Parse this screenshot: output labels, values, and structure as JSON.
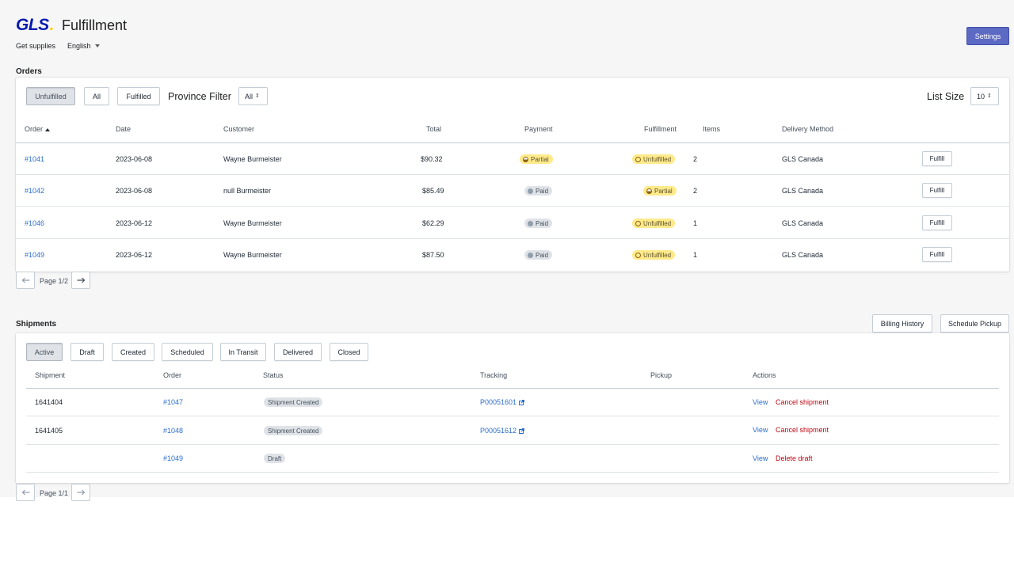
{
  "header": {
    "logo_text": "GLS",
    "logo_dot": ".",
    "title": "Fulfillment",
    "get_supplies": "Get supplies",
    "language": "English",
    "settings": "Settings"
  },
  "colors": {
    "primary": "#5c6ac4",
    "link": "#2c6ecb",
    "danger": "#bf0711",
    "brand_blue": "#061ab1",
    "brand_yellow": "#ffd100",
    "attention_badge": "#ffea8a",
    "neutral_badge": "#dfe3e8"
  },
  "orders": {
    "title": "Orders",
    "filters": [
      "Unfulfilled",
      "All",
      "Fulfilled"
    ],
    "active_filter": "Unfulfilled",
    "province_label": "Province Filter",
    "province_value": "All",
    "list_size_label": "List Size",
    "list_size_value": "10",
    "columns": [
      "Order",
      "Date",
      "Customer",
      "Total",
      "Payment",
      "Fulfillment",
      "Items",
      "Delivery Method"
    ],
    "sort_column": "Order",
    "rows": [
      {
        "order": "#1041",
        "date": "2023-06-08",
        "customer": "Wayne Burmeister",
        "total": "$90.32",
        "payment": "Partial",
        "fulfillment": "Unfulfilled",
        "items": "2",
        "delivery": "GLS Canada",
        "action": "Fulfill"
      },
      {
        "order": "#1042",
        "date": "2023-06-08",
        "customer": "null Burmeister",
        "total": "$85.49",
        "payment": "Paid",
        "fulfillment": "Partial",
        "items": "2",
        "delivery": "GLS Canada",
        "action": "Fulfill"
      },
      {
        "order": "#1046",
        "date": "2023-06-12",
        "customer": "Wayne Burmeister",
        "total": "$62.29",
        "payment": "Paid",
        "fulfillment": "Unfulfilled",
        "items": "1",
        "delivery": "GLS Canada",
        "action": "Fulfill"
      },
      {
        "order": "#1049",
        "date": "2023-06-12",
        "customer": "Wayne Burmeister",
        "total": "$87.50",
        "payment": "Paid",
        "fulfillment": "Unfulfilled",
        "items": "1",
        "delivery": "GLS Canada",
        "action": "Fulfill"
      }
    ],
    "page_text": "Page 1/2"
  },
  "shipments": {
    "title": "Shipments",
    "billing_history": "Billing History",
    "schedule_pickup": "Schedule Pickup",
    "filters": [
      "Active",
      "Draft",
      "Created",
      "Scheduled",
      "In Transit",
      "Delivered",
      "Closed"
    ],
    "active_filter": "Active",
    "columns": [
      "Shipment",
      "Order",
      "Status",
      "Tracking",
      "Pickup",
      "Actions"
    ],
    "rows": [
      {
        "shipment": "1641404",
        "order": "#1047",
        "status": "Shipment Created",
        "tracking": "P00051601",
        "pickup": "",
        "view": "View",
        "action": "Cancel shipment"
      },
      {
        "shipment": "1641405",
        "order": "#1048",
        "status": "Shipment Created",
        "tracking": "P00051612",
        "pickup": "",
        "view": "View",
        "action": "Cancel shipment"
      },
      {
        "shipment": "",
        "order": "#1049",
        "status": "Draft",
        "tracking": "",
        "pickup": "",
        "view": "View",
        "action": "Delete draft"
      }
    ],
    "page_text": "Page 1/1"
  }
}
